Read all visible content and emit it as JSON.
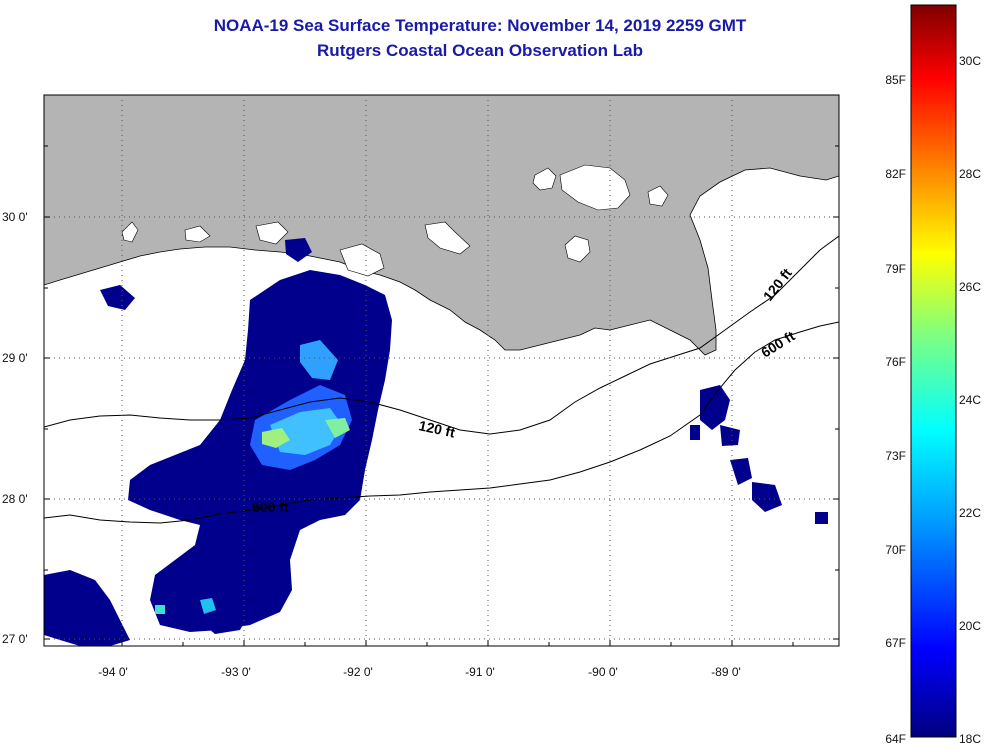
{
  "title": "NOAA-19 Sea Surface Temperature:  November 14, 2019 2259 GMT",
  "subtitle": "Rutgers Coastal Ocean Observation Lab",
  "lon_labels": [
    "-94 0'",
    "-93 0'",
    "-92 0'",
    "-91 0'",
    "-90 0'",
    "-89 0'"
  ],
  "lat_labels": [
    "30 0'",
    "29 0'",
    "28 0'",
    "27 0'"
  ],
  "contour_labels": [
    "120 ft",
    "120 ft",
    "600 ft",
    "600 ft"
  ],
  "colorbar": {
    "fahrenheit_labels": [
      "85F",
      "82F",
      "79F",
      "76F",
      "73F",
      "70F",
      "67F",
      "64F"
    ],
    "celsius_labels": [
      "30C",
      "28C",
      "26C",
      "24C",
      "22C",
      "20C",
      "18C"
    ]
  },
  "colors": {
    "land": "#b4b4b4",
    "ocean": "#ffffff",
    "title": "#1a1aa8",
    "cold_sst": "#00008c"
  }
}
